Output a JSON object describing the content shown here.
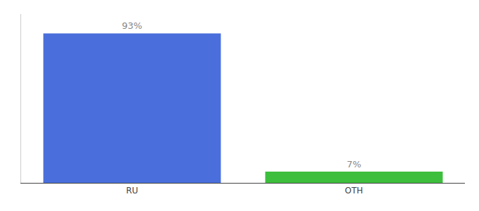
{
  "chart_data": {
    "type": "bar",
    "categories": [
      "RU",
      "OTH"
    ],
    "values": [
      93,
      7
    ],
    "value_labels": [
      "93%",
      "7%"
    ],
    "data_labels": true,
    "colors": [
      "#4a6fdc",
      "#3dbf3d"
    ],
    "ylim": [
      0,
      105
    ],
    "tick_labels": "x",
    "grid": false
  }
}
